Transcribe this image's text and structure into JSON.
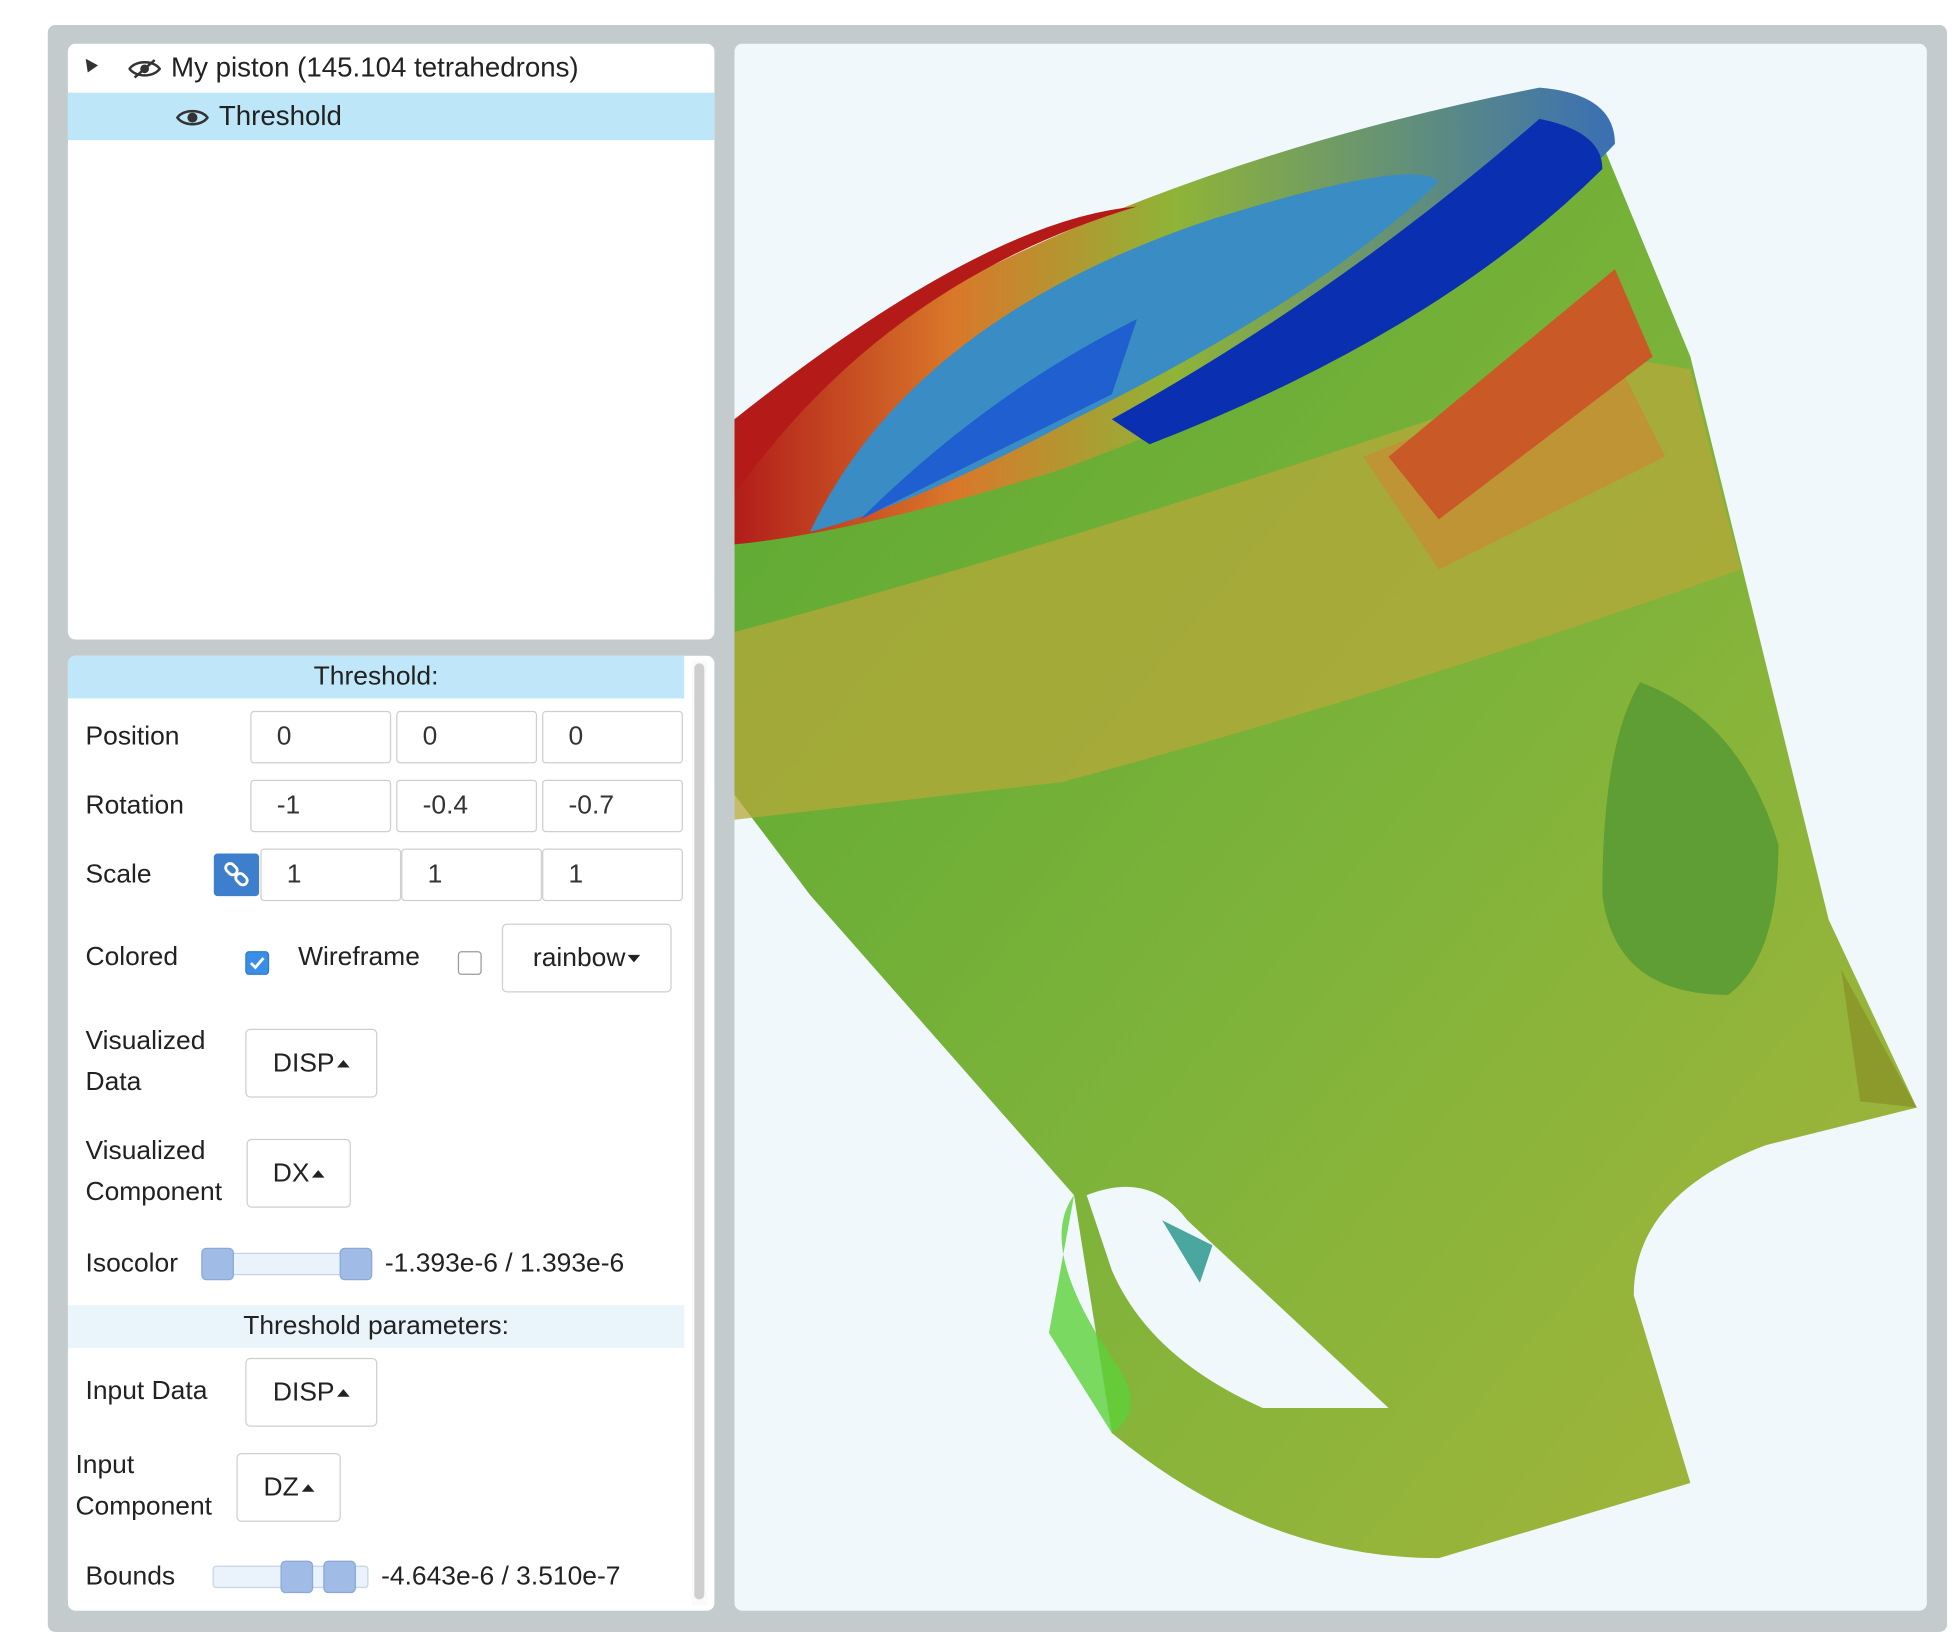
{
  "tree": {
    "root_label": "My piston (145.104 tetrahedrons)",
    "child_label": "Threshold"
  },
  "props": {
    "header": "Threshold:",
    "position": {
      "label": "Position",
      "x": "0",
      "y": "0",
      "z": "0"
    },
    "rotation": {
      "label": "Rotation",
      "x": "-1",
      "y": "-0.4",
      "z": "-0.7"
    },
    "scale": {
      "label": "Scale",
      "x": "1",
      "y": "1",
      "z": "1"
    },
    "colored": {
      "label": "Colored",
      "checked": true
    },
    "wireframe": {
      "label": "Wireframe",
      "checked": false
    },
    "colormap": "rainbow",
    "visualized_data": {
      "label_line1": "Visualized",
      "label_line2": "Data",
      "value": "DISP"
    },
    "visualized_component": {
      "label_line1": "Visualized",
      "label_line2": "Component",
      "value": "DX"
    },
    "isocolor": {
      "label": "Isocolor",
      "range_text": "-1.393e-6 / 1.393e-6",
      "low_fraction": 0.0,
      "high_fraction": 1.0
    },
    "threshold_params_header": "Threshold parameters:",
    "input_data": {
      "label": "Input Data",
      "value": "DISP"
    },
    "input_component": {
      "label_line1": "Input",
      "label_line2": "Component",
      "value": "DZ"
    },
    "bounds": {
      "label": "Bounds",
      "range_text": "-4.643e-6 / 3.510e-7",
      "low_fraction": 0.55,
      "high_fraction": 0.9
    }
  },
  "colors": {
    "selection": "#bde6f9",
    "accent_blue": "#3d7fcc",
    "viewport_bg": "#f1f8fc",
    "frame": "#c3cbcd"
  }
}
